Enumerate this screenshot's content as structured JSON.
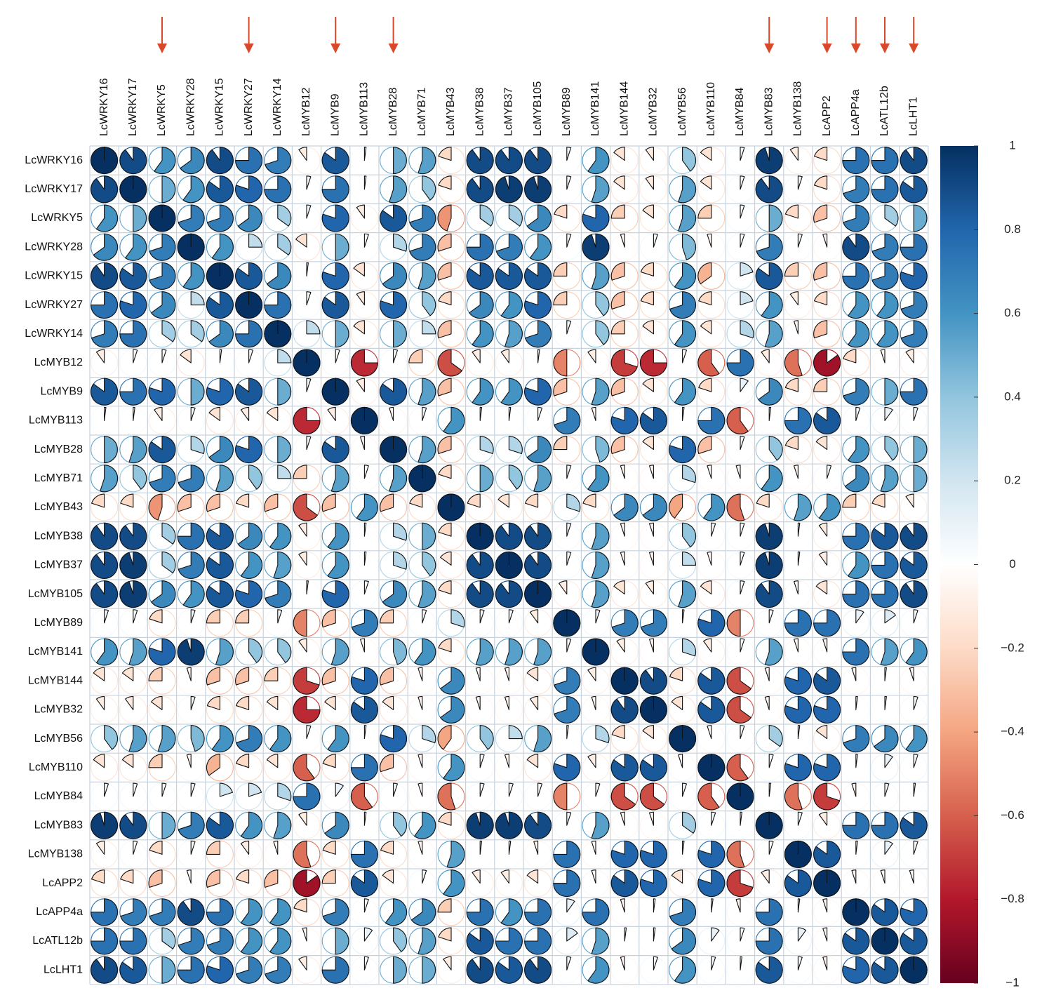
{
  "chart_data": {
    "type": "heatmap",
    "subtype": "correlation-pie-matrix",
    "labels": [
      "LcWRKY16",
      "LcWRKY17",
      "LcWRKY5",
      "LcWRKY28",
      "LcWRKY15",
      "LcWRKY27",
      "LcWRKY14",
      "LcMYB12",
      "LcMYB9",
      "LcMYB113",
      "LcMYB28",
      "LcMYB71",
      "LcMYB43",
      "LcMYB38",
      "LcMYB37",
      "LcMYB105",
      "LcMYB89",
      "LcMYB141",
      "LcMYB144",
      "LcMYB32",
      "LcMYB56",
      "LcMYB110",
      "LcMYB84",
      "LcMYB83",
      "LcMYB138",
      "LcAPP2",
      "LcAPP4a",
      "LcATL12b",
      "LcLHT1"
    ],
    "highlighted": [
      "LcWRKY5",
      "LcWRKY27",
      "LcMYB9",
      "LcMYB28",
      "LcMYB83",
      "LcAPP2",
      "LcAPP4a",
      "LcATL12b",
      "LcLHT1"
    ],
    "colorbar_ticks": [
      "1",
      "0.8",
      "0.6",
      "0.4",
      "0.2",
      "0",
      "−0.2",
      "−0.4",
      "−0.6",
      "−0.8",
      "−1"
    ],
    "colorbar_range": [
      -1,
      1
    ],
    "colors": {
      "neg_strong": "#67001f",
      "neg_mid": "#d6604d",
      "neutral": "#ffffff",
      "pos_mid": "#4393c3",
      "pos_strong": "#053061",
      "arrow": "#d9482b",
      "grid": "#c8d2dc"
    },
    "matrix": [
      [
        1,
        0.9,
        0.6,
        0.65,
        0.9,
        0.75,
        0.7,
        -0.1,
        0.85,
        0.02,
        0.5,
        0.55,
        -0.2,
        0.9,
        0.9,
        0.9,
        0.05,
        0.6,
        -0.15,
        -0.1,
        0.4,
        -0.15,
        0.05,
        0.95,
        -0.1,
        -0.2,
        0.75,
        0.75,
        0.9
      ],
      [
        0.9,
        1,
        0.5,
        0.6,
        0.85,
        0.8,
        0.75,
        0.05,
        0.75,
        0.02,
        0.55,
        0.4,
        -0.2,
        0.9,
        0.95,
        0.95,
        0.05,
        0.55,
        -0.15,
        -0.1,
        0.55,
        -0.15,
        0.05,
        0.9,
        0.05,
        -0.2,
        0.7,
        0.75,
        0.85
      ],
      [
        0.6,
        0.5,
        1,
        0.7,
        0.7,
        0.65,
        0.35,
        0.05,
        0.8,
        -0.1,
        0.85,
        0.7,
        -0.45,
        0.35,
        0.35,
        0.65,
        -0.2,
        0.8,
        -0.25,
        -0.15,
        0.55,
        -0.25,
        0.05,
        0.5,
        -0.2,
        -0.3,
        0.7,
        0.35,
        0.5
      ],
      [
        0.65,
        0.6,
        0.7,
        1,
        0.6,
        0.25,
        0.35,
        -0.15,
        0.5,
        0.05,
        0.3,
        0.7,
        -0.3,
        0.75,
        0.7,
        0.6,
        0.05,
        0.95,
        -0.05,
        0.05,
        0.45,
        -0.05,
        0.05,
        0.7,
        0.05,
        -0.05,
        0.9,
        0.7,
        0.75
      ],
      [
        0.9,
        0.85,
        0.7,
        0.6,
        1,
        0.85,
        0.65,
        0.02,
        0.8,
        -0.15,
        0.65,
        0.55,
        -0.3,
        0.85,
        0.85,
        0.85,
        -0.25,
        0.55,
        -0.3,
        -0.2,
        0.6,
        -0.35,
        0.2,
        0.85,
        -0.25,
        -0.3,
        0.75,
        0.7,
        0.8
      ],
      [
        0.75,
        0.8,
        0.65,
        0.25,
        0.85,
        1,
        0.75,
        0.05,
        0.85,
        -0.1,
        0.8,
        0.4,
        -0.2,
        0.65,
        0.6,
        0.8,
        -0.25,
        0.4,
        -0.3,
        -0.2,
        0.7,
        -0.2,
        0.2,
        0.6,
        -0.1,
        -0.2,
        0.6,
        0.6,
        0.7
      ],
      [
        0.7,
        0.75,
        0.35,
        0.35,
        0.65,
        0.75,
        1,
        0.25,
        0.5,
        -0.15,
        0.5,
        0.25,
        -0.3,
        0.6,
        0.55,
        0.7,
        0.05,
        0.4,
        -0.25,
        -0.15,
        0.6,
        -0.15,
        0.3,
        0.55,
        -0.05,
        -0.3,
        0.6,
        0.6,
        0.7
      ],
      [
        -0.1,
        0.05,
        0.05,
        -0.15,
        0.02,
        0.05,
        0.25,
        1,
        0.05,
        -0.75,
        0.05,
        -0.25,
        -0.65,
        -0.1,
        -0.1,
        0.02,
        -0.5,
        -0.1,
        -0.7,
        -0.75,
        0.05,
        -0.6,
        0.75,
        -0.1,
        -0.55,
        -0.85,
        -0.2,
        -0.05,
        -0.1
      ],
      [
        0.85,
        0.75,
        0.8,
        0.5,
        0.8,
        0.85,
        0.5,
        0.05,
        1,
        -0.1,
        0.85,
        0.55,
        -0.3,
        0.6,
        0.6,
        0.8,
        -0.3,
        0.55,
        -0.3,
        -0.15,
        0.6,
        -0.2,
        0.1,
        0.65,
        -0.2,
        -0.25,
        0.7,
        0.5,
        0.75
      ],
      [
        0.02,
        0.02,
        -0.1,
        0.05,
        -0.15,
        -0.1,
        -0.15,
        -0.75,
        -0.1,
        1,
        -0.05,
        0.05,
        0.6,
        0.02,
        0.02,
        0.05,
        0.7,
        -0.05,
        0.8,
        0.85,
        0.02,
        0.75,
        -0.6,
        0.02,
        0.75,
        0.85,
        0.05,
        0.1,
        0.05
      ],
      [
        0.5,
        0.55,
        0.85,
        0.3,
        0.65,
        0.8,
        0.5,
        0.05,
        0.85,
        -0.05,
        1,
        0.55,
        -0.3,
        0.3,
        0.3,
        0.65,
        -0.25,
        0.45,
        -0.3,
        -0.15,
        0.8,
        -0.3,
        0.05,
        0.4,
        -0.2,
        -0.15,
        0.6,
        0.4,
        0.5
      ],
      [
        0.55,
        0.4,
        0.7,
        0.7,
        0.55,
        0.4,
        0.25,
        -0.25,
        0.55,
        0.05,
        0.55,
        1,
        -0.2,
        0.5,
        0.4,
        0.55,
        0.05,
        0.6,
        -0.05,
        -0.05,
        0.3,
        -0.05,
        -0.05,
        0.6,
        -0.05,
        0.05,
        0.65,
        0.55,
        0.5
      ],
      [
        -0.2,
        -0.2,
        -0.45,
        -0.3,
        -0.3,
        -0.2,
        -0.3,
        -0.65,
        -0.3,
        0.6,
        -0.3,
        -0.2,
        1,
        -0.2,
        -0.15,
        -0.2,
        0.3,
        -0.2,
        0.65,
        0.65,
        -0.4,
        0.6,
        -0.55,
        -0.2,
        0.55,
        0.6,
        -0.25,
        -0.2,
        -0.1
      ],
      [
        0.9,
        0.9,
        0.35,
        0.75,
        0.85,
        0.65,
        0.6,
        -0.1,
        0.6,
        0.02,
        0.3,
        0.5,
        -0.2,
        1,
        0.9,
        0.9,
        0.05,
        0.55,
        -0.05,
        -0.05,
        0.4,
        0.05,
        0.05,
        0.95,
        0.02,
        -0.1,
        0.75,
        0.85,
        0.9
      ],
      [
        0.9,
        0.95,
        0.35,
        0.7,
        0.85,
        0.6,
        0.55,
        -0.1,
        0.6,
        0.02,
        0.3,
        0.4,
        -0.15,
        0.9,
        1,
        0.9,
        0.05,
        0.55,
        -0.05,
        -0.05,
        0.25,
        -0.05,
        0.05,
        0.95,
        0.02,
        -0.1,
        0.6,
        0.75,
        0.85
      ],
      [
        0.9,
        0.95,
        0.65,
        0.6,
        0.85,
        0.8,
        0.7,
        0.02,
        0.8,
        0.05,
        0.65,
        0.55,
        -0.2,
        0.9,
        0.9,
        1,
        -0.1,
        0.55,
        -0.15,
        -0.1,
        0.55,
        -0.15,
        0.05,
        0.9,
        -0.05,
        -0.15,
        0.75,
        0.75,
        0.9
      ],
      [
        0.05,
        0.05,
        -0.2,
        0.05,
        -0.25,
        -0.25,
        0.05,
        -0.5,
        -0.3,
        0.7,
        -0.25,
        0.05,
        0.3,
        0.05,
        0.05,
        -0.1,
        1,
        0.05,
        0.7,
        0.7,
        0.02,
        0.8,
        -0.5,
        0.05,
        0.75,
        0.75,
        0.1,
        0.15,
        0.05
      ],
      [
        0.6,
        0.55,
        0.8,
        0.95,
        0.55,
        0.4,
        0.4,
        -0.1,
        0.55,
        -0.05,
        0.45,
        0.6,
        -0.2,
        0.55,
        0.55,
        0.55,
        0.05,
        1,
        -0.1,
        -0.05,
        0.3,
        -0.1,
        0.05,
        0.55,
        -0.05,
        -0.05,
        0.75,
        0.55,
        0.6
      ],
      [
        -0.15,
        -0.15,
        -0.25,
        -0.05,
        -0.3,
        -0.3,
        -0.25,
        -0.7,
        -0.3,
        0.8,
        -0.3,
        -0.05,
        0.65,
        -0.05,
        -0.05,
        -0.15,
        0.7,
        -0.1,
        1,
        0.9,
        -0.2,
        0.85,
        -0.65,
        -0.05,
        0.8,
        0.85,
        -0.05,
        0.02,
        -0.05
      ],
      [
        -0.1,
        -0.1,
        -0.15,
        0.05,
        -0.2,
        -0.2,
        -0.15,
        -0.75,
        -0.15,
        0.85,
        -0.15,
        -0.05,
        0.65,
        -0.05,
        -0.05,
        -0.1,
        0.7,
        -0.05,
        0.9,
        1,
        -0.15,
        0.85,
        -0.65,
        -0.05,
        0.8,
        0.8,
        0.02,
        0.02,
        0.05
      ],
      [
        0.4,
        0.55,
        0.55,
        0.45,
        0.6,
        0.7,
        0.6,
        0.05,
        0.6,
        0.02,
        0.8,
        0.3,
        -0.4,
        0.4,
        0.25,
        0.55,
        0.02,
        0.3,
        -0.2,
        -0.15,
        1,
        -0.05,
        0.05,
        0.35,
        0.02,
        -0.15,
        0.7,
        0.65,
        0.6
      ],
      [
        -0.15,
        -0.15,
        -0.25,
        -0.05,
        -0.35,
        -0.2,
        -0.15,
        -0.6,
        -0.2,
        0.75,
        -0.3,
        -0.05,
        0.6,
        0.05,
        -0.05,
        -0.15,
        0.8,
        -0.1,
        0.85,
        0.85,
        -0.05,
        1,
        -0.6,
        0.05,
        0.8,
        0.8,
        0.02,
        0.1,
        0.05
      ],
      [
        0.05,
        0.05,
        0.05,
        0.05,
        0.2,
        0.2,
        0.3,
        0.75,
        0.1,
        -0.6,
        0.05,
        -0.05,
        -0.55,
        0.05,
        0.05,
        0.05,
        -0.5,
        0.05,
        -0.65,
        -0.65,
        0.05,
        -0.6,
        1,
        0.02,
        -0.55,
        -0.7,
        -0.05,
        0.05,
        0.02
      ],
      [
        0.95,
        0.9,
        0.5,
        0.7,
        0.85,
        0.6,
        0.55,
        -0.1,
        0.65,
        0.02,
        0.4,
        0.6,
        -0.2,
        0.95,
        0.95,
        0.9,
        0.05,
        0.55,
        -0.05,
        -0.05,
        0.35,
        0.05,
        0.02,
        1,
        0.05,
        -0.1,
        0.75,
        0.75,
        0.85
      ],
      [
        -0.1,
        0.05,
        -0.2,
        0.05,
        -0.25,
        -0.1,
        -0.05,
        -0.55,
        -0.2,
        0.75,
        -0.2,
        -0.05,
        0.55,
        0.02,
        0.02,
        -0.05,
        0.75,
        -0.05,
        0.8,
        0.8,
        0.02,
        0.8,
        -0.55,
        0.05,
        1,
        0.85,
        0.02,
        0.1,
        0.05
      ],
      [
        -0.2,
        -0.2,
        -0.3,
        -0.05,
        -0.3,
        -0.2,
        -0.3,
        -0.85,
        -0.25,
        0.85,
        -0.15,
        0.05,
        0.6,
        -0.1,
        -0.1,
        -0.15,
        0.75,
        -0.05,
        0.85,
        0.8,
        -0.15,
        0.8,
        -0.7,
        -0.1,
        0.85,
        1,
        -0.05,
        -0.05,
        -0.05
      ],
      [
        0.75,
        0.7,
        0.7,
        0.9,
        0.75,
        0.6,
        0.6,
        -0.2,
        0.7,
        0.05,
        0.6,
        0.65,
        -0.25,
        0.75,
        0.6,
        0.75,
        0.1,
        0.75,
        -0.05,
        0.02,
        0.7,
        0.02,
        -0.05,
        0.75,
        0.02,
        -0.05,
        1,
        0.85,
        0.8
      ],
      [
        0.75,
        0.75,
        0.35,
        0.7,
        0.7,
        0.6,
        0.6,
        -0.05,
        0.5,
        0.1,
        0.4,
        0.55,
        -0.2,
        0.85,
        0.75,
        0.75,
        0.15,
        0.55,
        0.02,
        0.02,
        0.65,
        0.1,
        0.05,
        0.75,
        0.1,
        -0.05,
        0.85,
        1,
        0.85
      ],
      [
        0.9,
        0.85,
        0.5,
        0.75,
        0.8,
        0.7,
        0.7,
        -0.1,
        0.75,
        0.05,
        0.5,
        0.5,
        -0.1,
        0.9,
        0.85,
        0.9,
        0.05,
        0.6,
        -0.05,
        0.05,
        0.6,
        0.05,
        0.02,
        0.85,
        0.05,
        -0.05,
        0.8,
        0.85,
        1
      ]
    ]
  }
}
